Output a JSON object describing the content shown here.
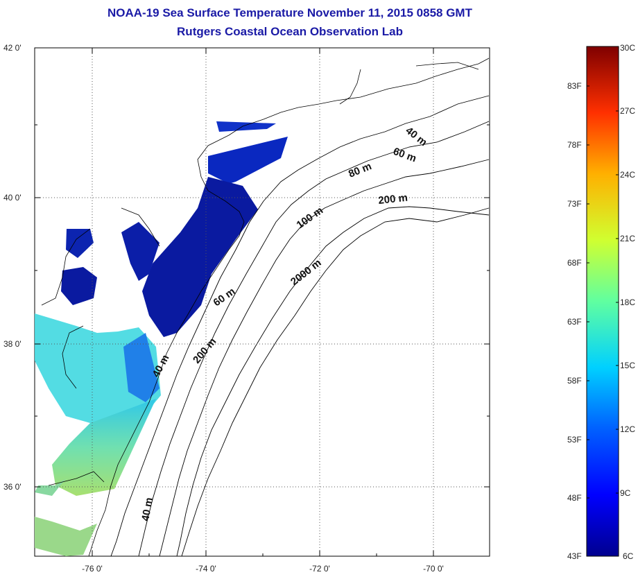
{
  "header": {
    "title": "NOAA-19 Sea Surface Temperature November 11, 2015 0858 GMT",
    "subtitle": "Rutgers Coastal Ocean Observation Lab"
  },
  "axes": {
    "lat_labels": [
      "42 0'",
      "40 0'",
      "38 0'",
      "36 0'"
    ],
    "lon_labels": [
      "-76 0'",
      "-74 0'",
      "-72 0'",
      "-70 0'"
    ]
  },
  "contours": {
    "c40_upper": "40 m",
    "c60_upper": "60 m",
    "c80": "80 m",
    "c200_upper": "200 m",
    "c100": "100 m",
    "c2000": "2000 m",
    "c60_mid": "60 m",
    "c200_mid": "200 m",
    "c40_mid": "40 m",
    "c40_lower": "40 m"
  },
  "colorbar": {
    "celsius": [
      "30C",
      "27C",
      "24C",
      "21C",
      "18C",
      "15C",
      "12C",
      "9C",
      "6C"
    ],
    "fahrenheit": [
      "83F",
      "78F",
      "73F",
      "68F",
      "63F",
      "58F",
      "53F",
      "48F",
      "43F"
    ],
    "stops": [
      "#7f0000",
      "#ff0000",
      "#ff8000",
      "#ffff00",
      "#80ff80",
      "#00ffff",
      "#0080ff",
      "#0000ff",
      "#00008f"
    ]
  },
  "colors": {
    "title": "#1a1aa6",
    "cold_water": "#0a1aa0",
    "bay_water": "#40e0d0",
    "warm_water": "#9ad88a"
  }
}
